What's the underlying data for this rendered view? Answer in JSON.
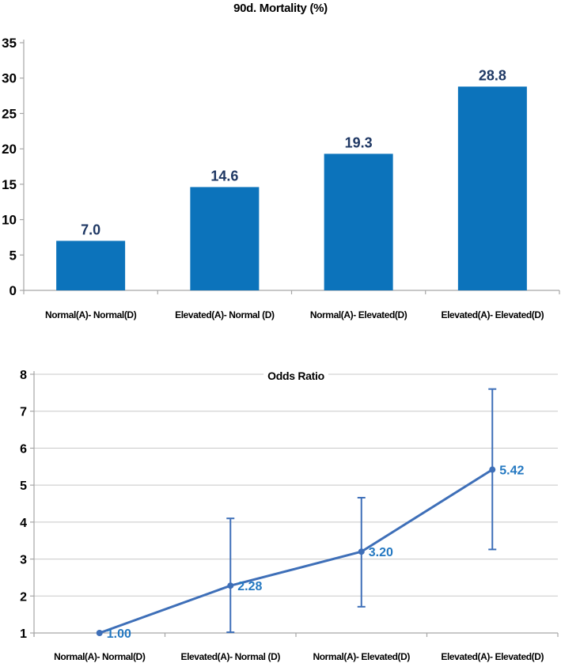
{
  "colors": {
    "bar_fill": "#0c73bb",
    "bar_value_label": "#1f3864",
    "line": "#3e6fb8",
    "marker": "#3e6fb8",
    "error_bar": "#3e6fb8",
    "point_label": "#2478c1",
    "axis": "#a6a6a6",
    "grid": "#c8c8c8",
    "text": "#000000",
    "background": "#ffffff"
  },
  "chart_data": [
    {
      "type": "bar",
      "title": "90d. Mortality (%)",
      "categories": [
        "Normal(A)- Normal(D)",
        "Elevated(A)- Normal (D)",
        "Normal(A)- Elevated(D)",
        "Elevated(A)- Elevated(D)"
      ],
      "values": [
        7.0,
        14.6,
        19.3,
        28.8
      ],
      "value_labels": [
        "7.0",
        "14.6",
        "19.3",
        "28.8"
      ],
      "ylim": [
        0,
        35
      ],
      "yticks": [
        0,
        5,
        10,
        15,
        20,
        25,
        30,
        35
      ],
      "grid": false,
      "legend_position": "none"
    },
    {
      "type": "line",
      "title": "Odds Ratio",
      "categories": [
        "Normal(A)- Normal(D)",
        "Elevated(A)- Normal (D)",
        "Normal(A)- Elevated(D)",
        "Elevated(A)- Elevated(D)"
      ],
      "values": [
        1.0,
        2.28,
        3.2,
        5.42
      ],
      "value_labels": [
        "1.00",
        "2.28",
        "3.20",
        "5.42"
      ],
      "error_bars": [
        {
          "low": null,
          "high": null
        },
        {
          "low": 1.02,
          "high": 4.1
        },
        {
          "low": 1.71,
          "high": 4.66
        },
        {
          "low": 3.26,
          "high": 7.6
        }
      ],
      "ylim": [
        1,
        8
      ],
      "yticks": [
        1,
        2,
        3,
        4,
        5,
        6,
        7,
        8
      ],
      "grid": true,
      "legend_position": "none"
    }
  ]
}
